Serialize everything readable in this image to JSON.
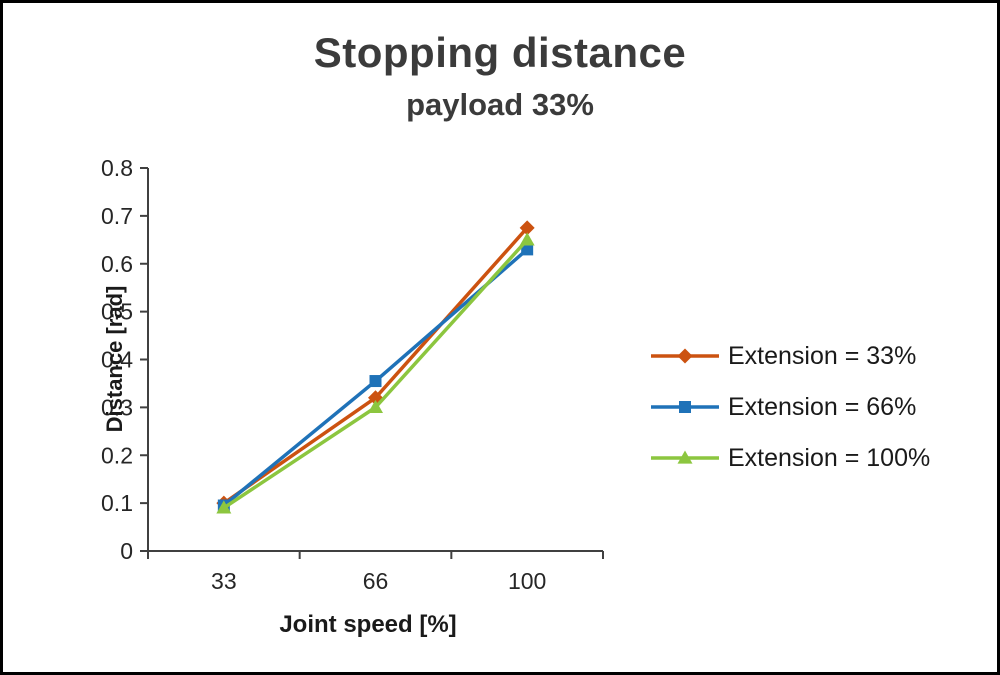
{
  "chart_data": {
    "type": "line",
    "title": "Stopping distance",
    "subtitle": "payload 33%",
    "xlabel": "Joint speed [%]",
    "ylabel": "Distance [rad]",
    "categories": [
      "33",
      "66",
      "100"
    ],
    "y_tick_labels": [
      "0",
      "0.1",
      "0.2",
      "0.3",
      "0.4",
      "0.5",
      "0.6",
      "0.7",
      "0.8"
    ],
    "ylim": [
      0,
      0.8
    ],
    "grid": false,
    "legend_position": "right",
    "axis_color": "#404040",
    "text_color": "#262626",
    "title_color": "#3b3b3b",
    "background": "#ffffff",
    "series": [
      {
        "name": "Extension = 33%",
        "marker": "diamond",
        "color": "#cc5210",
        "values": [
          0.1,
          0.32,
          0.675
        ]
      },
      {
        "name": "Extension = 66%",
        "marker": "square",
        "color": "#1f72b8",
        "values": [
          0.095,
          0.355,
          0.63
        ]
      },
      {
        "name": "Extension = 100%",
        "marker": "triangle",
        "color": "#8cc63f",
        "values": [
          0.09,
          0.3,
          0.65
        ]
      }
    ]
  }
}
